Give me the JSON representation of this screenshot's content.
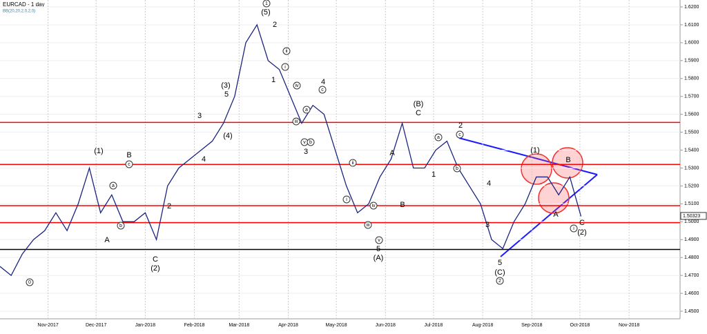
{
  "chart_data": {
    "type": "line",
    "title": "EURCAD - 1 day",
    "subtitle": "BB(20,20,2,0,2,0)",
    "series": [
      {
        "name": "EURCAD",
        "color": "#1a237e",
        "values": [
          1.475,
          1.47,
          1.482,
          1.49,
          1.495,
          1.505,
          1.495,
          1.51,
          1.53,
          1.505,
          1.515,
          1.5,
          1.5,
          1.505,
          1.49,
          1.52,
          1.53,
          1.535,
          1.54,
          1.545,
          1.555,
          1.57,
          1.6,
          1.61,
          1.59,
          1.585,
          1.57,
          1.555,
          1.565,
          1.56,
          1.54,
          1.52,
          1.505,
          1.51,
          1.525,
          1.535,
          1.555,
          1.53,
          1.53,
          1.54,
          1.545,
          1.53,
          1.52,
          1.51,
          1.49,
          1.485,
          1.5,
          1.51,
          1.525,
          1.525,
          1.515,
          1.525,
          1.503
        ]
      }
    ],
    "xlim": [
      0,
      60
    ],
    "xticks": [
      {
        "value": 4.3,
        "label": "Nov-2017"
      },
      {
        "value": 8.6,
        "label": "Dec-2017"
      },
      {
        "value": 13,
        "label": "Jan-2018"
      },
      {
        "value": 17.4,
        "label": "Feb-2018"
      },
      {
        "value": 21.4,
        "label": "Mar-2018"
      },
      {
        "value": 25.8,
        "label": "Apr-2018"
      },
      {
        "value": 30.1,
        "label": "May-2018"
      },
      {
        "value": 34.5,
        "label": "Jun-2018"
      },
      {
        "value": 38.8,
        "label": "Jul-2018"
      },
      {
        "value": 43.2,
        "label": "Aug-2018"
      },
      {
        "value": 47.6,
        "label": "Sep-2018"
      },
      {
        "value": 51.9,
        "label": "Oct-2018"
      },
      {
        "value": 56.3,
        "label": "Nov-2018"
      }
    ],
    "ylim": [
      1.45,
      1.62
    ],
    "yticks": [
      {
        "value": 1.45,
        "label": "1.4500"
      },
      {
        "value": 1.46,
        "label": "1.4600"
      },
      {
        "value": 1.47,
        "label": "1.4700"
      },
      {
        "value": 1.48,
        "label": "1.4800"
      },
      {
        "value": 1.49,
        "label": "1.4900"
      },
      {
        "value": 1.5,
        "label": "1.5000"
      },
      {
        "value": 1.51,
        "label": "1.5100"
      },
      {
        "value": 1.52,
        "label": "1.5200"
      },
      {
        "value": 1.53,
        "label": "1.5300"
      },
      {
        "value": 1.54,
        "label": "1.5400"
      },
      {
        "value": 1.55,
        "label": "1.5500"
      },
      {
        "value": 1.56,
        "label": "1.5600"
      },
      {
        "value": 1.57,
        "label": "1.5700"
      },
      {
        "value": 1.58,
        "label": "1.5800"
      },
      {
        "value": 1.59,
        "label": "1.5900"
      },
      {
        "value": 1.6,
        "label": "1.6000"
      },
      {
        "value": 1.61,
        "label": "1.6100"
      },
      {
        "value": 1.62,
        "label": "1.6200"
      }
    ],
    "grid": true,
    "levels": [
      {
        "value": 1.5555,
        "color": "#ff0000"
      },
      {
        "value": 1.532,
        "color": "#ff0000"
      },
      {
        "value": 1.509,
        "color": "#ff0000"
      },
      {
        "value": 1.4995,
        "color": "#ff0000"
      },
      {
        "value": 1.4845,
        "color": "#000000"
      }
    ],
    "last_price": 1.50323,
    "annotations": [
      "0",
      "(1)",
      "B",
      "A",
      "C",
      "(2)",
      "2",
      "3",
      "4",
      "(3)",
      "5",
      "(4)",
      "(5)",
      "2",
      "1",
      "4",
      "3",
      "(B)",
      "C",
      "A",
      "B",
      "1",
      "2",
      "4",
      "3",
      "5",
      "(A)",
      "5",
      "(C)",
      "(1)",
      "B",
      "A",
      "C",
      "(2)",
      "1",
      "ii",
      "i",
      "iv",
      "iii",
      "v",
      "b",
      "a",
      "c",
      "ii",
      "i",
      "iv",
      "iii",
      "v",
      "a",
      "b",
      "c",
      "a",
      "b",
      "c",
      "i",
      "2"
    ]
  }
}
